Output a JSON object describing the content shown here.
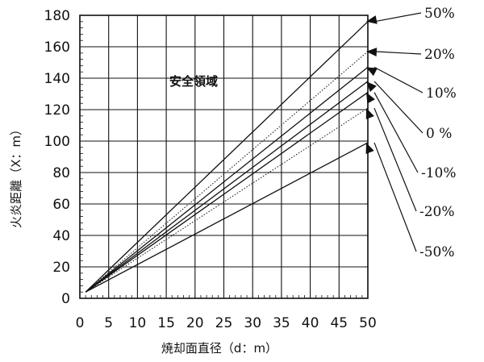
{
  "chart_data": {
    "type": "line",
    "xlabel": "焼却面直径（d：m）",
    "ylabel": "火炎距離（X：m）",
    "xlim": [
      0,
      50
    ],
    "ylim": [
      0,
      180
    ],
    "xticks": [
      0,
      5,
      10,
      15,
      20,
      25,
      30,
      35,
      40,
      45,
      50
    ],
    "yticks": [
      0,
      20,
      40,
      60,
      80,
      100,
      120,
      140,
      160,
      180
    ],
    "grid": true,
    "annotation": "安全領域",
    "series": [
      {
        "name": "50%",
        "style": "solid",
        "x": [
          1,
          50
        ],
        "y": [
          4,
          176
        ]
      },
      {
        "name": "20%",
        "style": "dotted",
        "x": [
          1,
          50
        ],
        "y": [
          4,
          157
        ]
      },
      {
        "name": "10%",
        "style": "solid",
        "x": [
          1,
          50
        ],
        "y": [
          4,
          147
        ]
      },
      {
        "name": "0 %",
        "style": "solid",
        "x": [
          1,
          50
        ],
        "y": [
          4,
          138
        ]
      },
      {
        "name": "-10%",
        "style": "solid",
        "x": [
          1,
          50
        ],
        "y": [
          4,
          131
        ]
      },
      {
        "name": "-20%",
        "style": "dotted",
        "x": [
          1,
          50
        ],
        "y": [
          4,
          121
        ]
      },
      {
        "name": "-50%",
        "style": "solid",
        "x": [
          1,
          50
        ],
        "y": [
          4,
          99
        ]
      }
    ]
  }
}
